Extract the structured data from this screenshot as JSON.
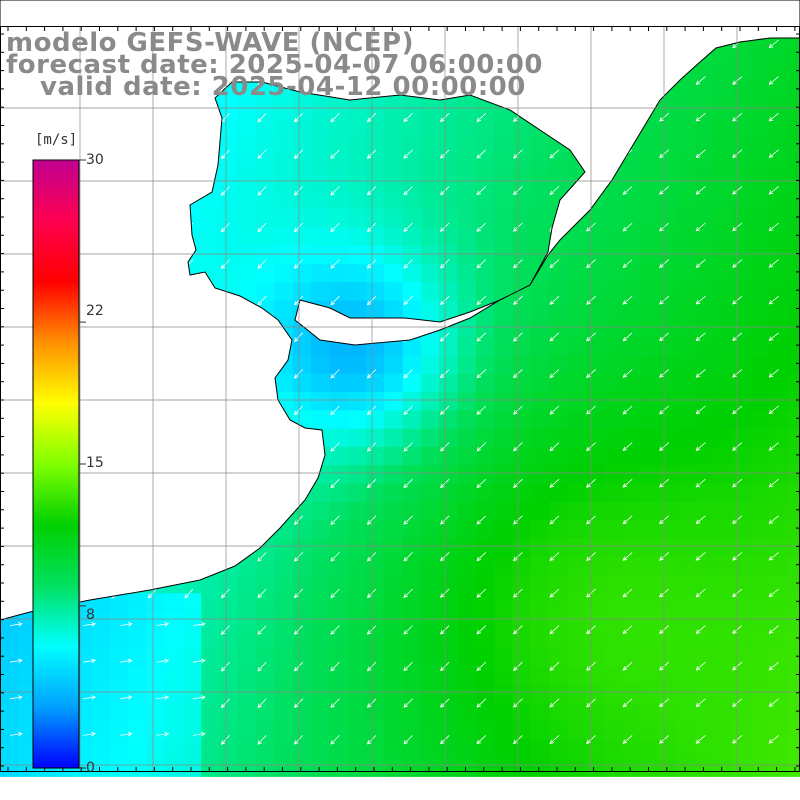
{
  "title": {
    "line1": "modelo GEFS-WAVE (NCEP)",
    "line2": "forecast date: 2025-04-07 06:00:00",
    "line3": "valid date: 2025-04-12 00:00:00"
  },
  "colorbar": {
    "unit": "[m/s]",
    "ticks": [
      {
        "label": "30",
        "value": 30
      },
      {
        "label": "22",
        "value": 22
      },
      {
        "label": "15",
        "value": 15
      },
      {
        "label": "8",
        "value": 8
      },
      {
        "label": "0",
        "value": 0
      }
    ],
    "min": 0,
    "max": 30,
    "colors": [
      "#0000ff",
      "#00a0ff",
      "#00ffff",
      "#00e060",
      "#00d000",
      "#80ff00",
      "#ffff00",
      "#ff9000",
      "#ff0000",
      "#ff0050",
      "#c00090"
    ]
  },
  "map": {
    "variable": "wind speed",
    "land_color": "#ffffff",
    "grid_color": "#888888"
  }
}
